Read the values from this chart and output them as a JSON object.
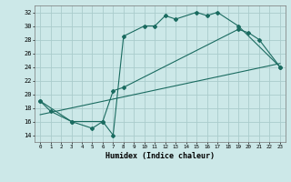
{
  "xlabel": "Humidex (Indice chaleur)",
  "background_color": "#cce8e8",
  "grid_color": "#aacccc",
  "line_color": "#1a6b60",
  "xlim": [
    -0.5,
    23.5
  ],
  "ylim": [
    13,
    33
  ],
  "xticks": [
    0,
    1,
    2,
    3,
    4,
    5,
    6,
    7,
    8,
    9,
    10,
    11,
    12,
    13,
    14,
    15,
    16,
    17,
    18,
    19,
    20,
    21,
    22,
    23
  ],
  "yticks": [
    14,
    16,
    18,
    20,
    22,
    24,
    26,
    28,
    30,
    32
  ],
  "curve1": {
    "x": [
      0,
      1,
      3,
      5,
      6,
      7,
      8,
      10,
      11,
      12,
      13,
      15,
      16,
      17,
      19,
      23
    ],
    "y": [
      19.0,
      17.5,
      16.0,
      15.0,
      16.0,
      14.0,
      28.5,
      30.0,
      30.0,
      31.5,
      31.0,
      32.0,
      31.5,
      32.0,
      30.0,
      24.0
    ]
  },
  "curve2": {
    "x": [
      0,
      3,
      6,
      7,
      8,
      19,
      20,
      21,
      23
    ],
    "y": [
      19.0,
      16.0,
      16.0,
      20.5,
      21.0,
      29.5,
      29.0,
      28.0,
      24.0
    ]
  },
  "curve3": {
    "x": [
      0,
      23
    ],
    "y": [
      17.0,
      24.5
    ]
  }
}
